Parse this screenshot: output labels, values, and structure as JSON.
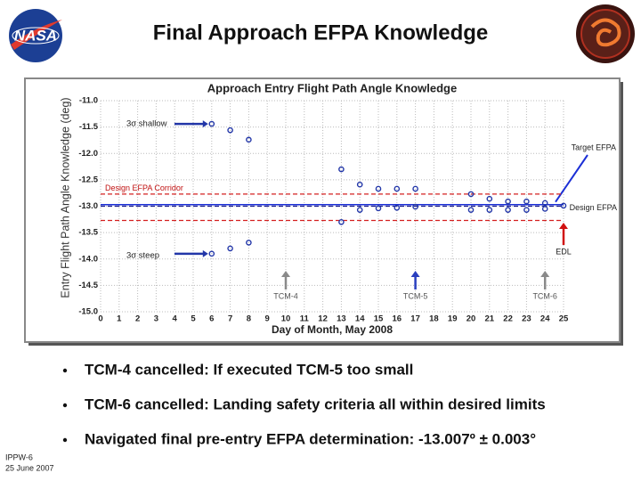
{
  "header": {
    "title": "Final Approach EFPA Knowledge",
    "logo_text": "NASA"
  },
  "chart_data": {
    "type": "scatter",
    "title": "Approach Entry Flight Path Angle Knowledge",
    "x_label": "Day of Month, May 2008",
    "y_label": "Entry Flight Path Angle Knowledge (deg)",
    "xlim": [
      0,
      25
    ],
    "xticks": [
      0,
      1,
      2,
      3,
      4,
      5,
      6,
      7,
      8,
      9,
      10,
      11,
      12,
      13,
      14,
      15,
      16,
      17,
      18,
      19,
      20,
      21,
      22,
      23,
      24,
      25
    ],
    "ylim": [
      -15,
      -11
    ],
    "yticks": [
      {
        "value": -15,
        "label": "-15.0"
      },
      -14.5,
      {
        "value": -14,
        "label": "-14.0"
      },
      -13.5,
      {
        "value": -13,
        "label": "-13.0"
      },
      -12.5,
      {
        "value": -12,
        "label": "-12.0"
      },
      -11.5,
      {
        "value": -11,
        "label": "-11.0"
      }
    ],
    "grid": true,
    "series": [
      {
        "label": "3σ shallow",
        "color": "#2236a8",
        "x": [
          6,
          7,
          8,
          13,
          14,
          15,
          16,
          17,
          20,
          21,
          22,
          23,
          24,
          25
        ],
        "values": [
          -11.44,
          -11.56,
          -11.74,
          -12.3,
          -12.59,
          -12.67,
          -12.67,
          -12.67,
          -12.77,
          -12.86,
          -12.91,
          -12.91,
          -12.94,
          -12.99
        ]
      },
      {
        "label": "3σ steep",
        "color": "#2236a8",
        "x": [
          6,
          7,
          8,
          13,
          14,
          15,
          16,
          17,
          20,
          21,
          22,
          23,
          24
        ],
        "values": [
          -13.9,
          -13.8,
          -13.69,
          -13.3,
          -13.07,
          -13.04,
          -13.03,
          -13.01,
          -13.07,
          -13.07,
          -13.07,
          -13.07,
          -13.05
        ]
      }
    ],
    "reference_lines": [
      {
        "label": "Target EFPA",
        "value": -12.97,
        "color": "#1b2fd6",
        "style": "solid"
      },
      {
        "label": "Design EFPA",
        "value": -13.0,
        "color": "#1b1b8a",
        "style": "dashed"
      },
      {
        "label": "Design EFPA Corridor",
        "value": -12.77,
        "color": "#d42020",
        "style": "dashed"
      },
      {
        "value": -13.27,
        "color": "#d42020",
        "style": "dashed"
      }
    ],
    "events": [
      {
        "label": "TCM-4",
        "x": 10,
        "color": "#8a8a8a"
      },
      {
        "label": "TCM-5",
        "x": 17,
        "color": "#2a3fbf"
      },
      {
        "label": "TCM-6",
        "x": 24,
        "color": "#8a8a8a"
      },
      {
        "label": "EDL",
        "x": 25,
        "color": "#d01010"
      }
    ]
  },
  "bullets": [
    "TCM-4 cancelled: If executed TCM-5 too small",
    "TCM-6 cancelled: Landing safety criteria all within desired limits",
    "Navigated final pre-entry EFPA determination:  -13.007º ± 0.003°"
  ],
  "footer": {
    "meeting": "IPPW-6",
    "date": "25 June 2007"
  }
}
